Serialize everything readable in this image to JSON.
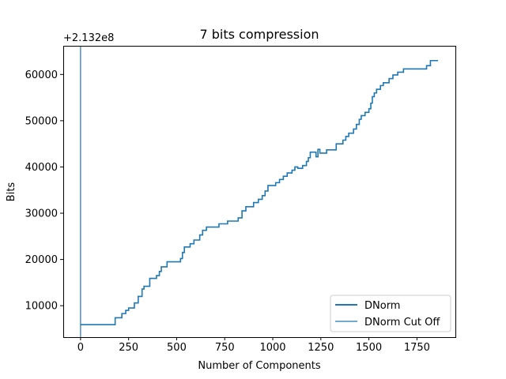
{
  "chart_data": {
    "type": "line",
    "title": "7 bits compression",
    "xlabel": "Number of Components",
    "ylabel": "Bits",
    "offset_label": "+2.132e8",
    "xlim": [
      -90,
      1950
    ],
    "ylim": [
      3200,
      66200
    ],
    "x_ticks": [
      {
        "value": 0,
        "label": "0"
      },
      {
        "value": 250,
        "label": "250"
      },
      {
        "value": 500,
        "label": "500"
      },
      {
        "value": 750,
        "label": "750"
      },
      {
        "value": 1000,
        "label": "1000"
      },
      {
        "value": 1250,
        "label": "1250"
      },
      {
        "value": 1500,
        "label": "1500"
      },
      {
        "value": 1750,
        "label": "1750"
      }
    ],
    "y_ticks": [
      {
        "value": 10000,
        "label": "10000"
      },
      {
        "value": 20000,
        "label": "20000"
      },
      {
        "value": 30000,
        "label": "30000"
      },
      {
        "value": 40000,
        "label": "40000"
      },
      {
        "value": 50000,
        "label": "50000"
      },
      {
        "value": 60000,
        "label": "60000"
      }
    ],
    "grid": false,
    "legend_position": "lower-right",
    "series": [
      {
        "name": "DNorm",
        "color": "#1f77b4",
        "style": "step",
        "points": [
          [
            0,
            5900
          ],
          [
            180,
            5900
          ],
          [
            180,
            7400
          ],
          [
            215,
            7400
          ],
          [
            215,
            8300
          ],
          [
            235,
            8300
          ],
          [
            235,
            9000
          ],
          [
            250,
            9000
          ],
          [
            250,
            9500
          ],
          [
            280,
            9500
          ],
          [
            280,
            10600
          ],
          [
            300,
            10600
          ],
          [
            300,
            12000
          ],
          [
            320,
            12000
          ],
          [
            320,
            13600
          ],
          [
            330,
            13600
          ],
          [
            330,
            14200
          ],
          [
            360,
            14200
          ],
          [
            360,
            15900
          ],
          [
            395,
            15900
          ],
          [
            395,
            16500
          ],
          [
            410,
            16500
          ],
          [
            410,
            17400
          ],
          [
            420,
            17400
          ],
          [
            420,
            18400
          ],
          [
            450,
            18400
          ],
          [
            450,
            19500
          ],
          [
            520,
            19500
          ],
          [
            520,
            20200
          ],
          [
            530,
            20200
          ],
          [
            530,
            21500
          ],
          [
            540,
            21500
          ],
          [
            540,
            22700
          ],
          [
            570,
            22700
          ],
          [
            570,
            23400
          ],
          [
            590,
            23400
          ],
          [
            590,
            24200
          ],
          [
            620,
            24200
          ],
          [
            620,
            25300
          ],
          [
            635,
            25300
          ],
          [
            635,
            26300
          ],
          [
            655,
            26300
          ],
          [
            655,
            27000
          ],
          [
            720,
            27000
          ],
          [
            720,
            27700
          ],
          [
            765,
            27700
          ],
          [
            765,
            28300
          ],
          [
            820,
            28300
          ],
          [
            820,
            29000
          ],
          [
            840,
            29000
          ],
          [
            840,
            30500
          ],
          [
            860,
            30500
          ],
          [
            860,
            31400
          ],
          [
            900,
            31400
          ],
          [
            900,
            32300
          ],
          [
            925,
            32300
          ],
          [
            925,
            33000
          ],
          [
            945,
            33000
          ],
          [
            945,
            33800
          ],
          [
            960,
            33800
          ],
          [
            960,
            34800
          ],
          [
            975,
            34800
          ],
          [
            975,
            36000
          ],
          [
            1015,
            36000
          ],
          [
            1015,
            36600
          ],
          [
            1035,
            36600
          ],
          [
            1035,
            37300
          ],
          [
            1055,
            37300
          ],
          [
            1055,
            38000
          ],
          [
            1075,
            38000
          ],
          [
            1075,
            38700
          ],
          [
            1100,
            38700
          ],
          [
            1100,
            39300
          ],
          [
            1115,
            39300
          ],
          [
            1115,
            40000
          ],
          [
            1130,
            40000
          ],
          [
            1130,
            39700
          ],
          [
            1155,
            39700
          ],
          [
            1155,
            40300
          ],
          [
            1175,
            40300
          ],
          [
            1175,
            41200
          ],
          [
            1185,
            41200
          ],
          [
            1185,
            42000
          ],
          [
            1195,
            42000
          ],
          [
            1195,
            43200
          ],
          [
            1225,
            43200
          ],
          [
            1225,
            42200
          ],
          [
            1235,
            42200
          ],
          [
            1235,
            43800
          ],
          [
            1245,
            43800
          ],
          [
            1245,
            43000
          ],
          [
            1280,
            43000
          ],
          [
            1280,
            43700
          ],
          [
            1330,
            43700
          ],
          [
            1330,
            45000
          ],
          [
            1365,
            45000
          ],
          [
            1365,
            45800
          ],
          [
            1380,
            45800
          ],
          [
            1380,
            46600
          ],
          [
            1395,
            46600
          ],
          [
            1395,
            47300
          ],
          [
            1420,
            47300
          ],
          [
            1420,
            48200
          ],
          [
            1435,
            48200
          ],
          [
            1435,
            49200
          ],
          [
            1450,
            49200
          ],
          [
            1450,
            50300
          ],
          [
            1460,
            50300
          ],
          [
            1460,
            51100
          ],
          [
            1480,
            51100
          ],
          [
            1480,
            51800
          ],
          [
            1500,
            51800
          ],
          [
            1500,
            52600
          ],
          [
            1510,
            52600
          ],
          [
            1510,
            53800
          ],
          [
            1518,
            53800
          ],
          [
            1518,
            55200
          ],
          [
            1528,
            55200
          ],
          [
            1528,
            56000
          ],
          [
            1540,
            56000
          ],
          [
            1540,
            56800
          ],
          [
            1560,
            56800
          ],
          [
            1560,
            57600
          ],
          [
            1575,
            57600
          ],
          [
            1575,
            58200
          ],
          [
            1605,
            58200
          ],
          [
            1605,
            59100
          ],
          [
            1625,
            59100
          ],
          [
            1625,
            59900
          ],
          [
            1650,
            59900
          ],
          [
            1650,
            60500
          ],
          [
            1680,
            60500
          ],
          [
            1680,
            61200
          ],
          [
            1800,
            61200
          ],
          [
            1800,
            61900
          ],
          [
            1820,
            61900
          ],
          [
            1820,
            63000
          ],
          [
            1860,
            63000
          ]
        ]
      },
      {
        "name": "DNorm Cut Off",
        "color": "#1f77b4",
        "style": "vline",
        "x": 0
      }
    ]
  }
}
